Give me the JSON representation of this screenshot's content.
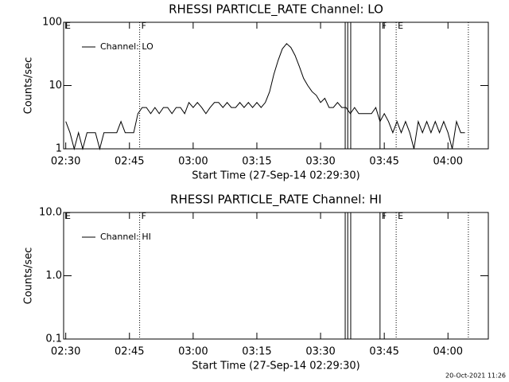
{
  "chart_data": [
    {
      "type": "line",
      "title": "RHESSI PARTICLE_RATE Channel: LO",
      "xlabel": "Start Time (27-Sep-14 02:29:30)",
      "ylabel": "Counts/sec",
      "log_y": true,
      "grid": false,
      "legend": "upper-left",
      "xlim": [
        "02:29:30",
        "04:09:30"
      ],
      "xticks": [
        {
          "value": "02:30",
          "label": "02:30"
        },
        {
          "value": "02:45",
          "label": "02:45"
        },
        {
          "value": "03:00",
          "label": "03:00"
        },
        {
          "value": "03:15",
          "label": "03:15"
        },
        {
          "value": "03:30",
          "label": "03:30"
        },
        {
          "value": "03:45",
          "label": "03:45"
        },
        {
          "value": "04:00",
          "label": "04:00"
        }
      ],
      "ylim": [
        1,
        100
      ],
      "yticks": [
        1,
        10,
        100
      ],
      "markers": [
        {
          "x": "02:29:30",
          "style": "solid",
          "label": "E"
        },
        {
          "x": "02:47:24",
          "style": "dotted",
          "label": "F"
        },
        {
          "x": "03:35:48",
          "style": "solid"
        },
        {
          "x": "03:36:24",
          "style": "solid"
        },
        {
          "x": "03:37:06",
          "style": "solid"
        },
        {
          "x": "03:44:00",
          "style": "solid",
          "label": "F"
        },
        {
          "x": "03:47:48",
          "style": "dotted",
          "label": "E"
        },
        {
          "x": "04:04:48",
          "style": "dotted"
        }
      ],
      "x": [
        "02:30",
        "02:31",
        "02:32",
        "02:33",
        "02:34",
        "02:35",
        "02:36",
        "02:37",
        "02:38",
        "02:39",
        "02:40",
        "02:41",
        "02:42",
        "02:43",
        "02:44",
        "02:45",
        "02:46",
        "02:47",
        "02:48",
        "02:49",
        "02:50",
        "02:51",
        "02:52",
        "02:53",
        "02:54",
        "02:55",
        "02:56",
        "02:57",
        "02:58",
        "02:59",
        "03:00",
        "03:01",
        "03:02",
        "03:03",
        "03:04",
        "03:05",
        "03:06",
        "03:07",
        "03:08",
        "03:09",
        "03:10",
        "03:11",
        "03:12",
        "03:13",
        "03:14",
        "03:15",
        "03:16",
        "03:17",
        "03:18",
        "03:19",
        "03:20",
        "03:21",
        "03:22",
        "03:23",
        "03:24",
        "03:25",
        "03:26",
        "03:27",
        "03:28",
        "03:29",
        "03:30",
        "03:31",
        "03:32",
        "03:33",
        "03:34",
        "03:35",
        "03:36",
        "03:37",
        "03:38",
        "03:39",
        "03:40",
        "03:41",
        "03:42",
        "03:43",
        "03:44",
        "03:45",
        "03:46",
        "03:47",
        "03:48",
        "03:49",
        "03:50",
        "03:51",
        "03:52",
        "03:53",
        "03:54",
        "03:55",
        "03:56",
        "03:57",
        "03:58",
        "03:59",
        "04:00",
        "04:01",
        "04:02",
        "04:03",
        "04:04"
      ],
      "series": [
        {
          "name": "Channel: LO",
          "color": "#000000",
          "values": [
            2.7,
            1.8,
            1.0,
            1.8,
            1.0,
            1.8,
            1.8,
            1.8,
            1.0,
            1.8,
            1.8,
            1.8,
            1.8,
            2.7,
            1.8,
            1.8,
            1.8,
            3.6,
            4.5,
            4.5,
            3.6,
            4.5,
            3.6,
            4.5,
            4.5,
            3.6,
            4.5,
            4.5,
            3.6,
            5.4,
            4.5,
            5.4,
            4.5,
            3.6,
            4.5,
            5.4,
            5.4,
            4.5,
            5.4,
            4.5,
            4.5,
            5.4,
            4.5,
            5.4,
            4.5,
            5.4,
            4.5,
            5.4,
            8,
            15,
            25,
            38,
            46,
            40,
            30,
            20,
            13,
            10,
            8,
            7,
            5.4,
            6.3,
            4.5,
            4.5,
            5.4,
            4.5,
            4.5,
            3.6,
            4.5,
            3.6,
            3.6,
            3.6,
            3.6,
            4.5,
            2.7,
            3.6,
            2.7,
            1.8,
            2.7,
            1.8,
            2.7,
            1.8,
            1.0,
            2.7,
            1.8,
            2.7,
            1.8,
            2.7,
            1.8,
            2.7,
            1.8,
            1.0,
            2.7,
            1.8,
            1.8
          ]
        }
      ]
    },
    {
      "type": "line",
      "title": "RHESSI PARTICLE_RATE Channel: HI",
      "xlabel": "Start Time (27-Sep-14 02:29:30)",
      "ylabel": "Counts/sec",
      "log_y": true,
      "grid": false,
      "legend": "upper-left",
      "xlim": [
        "02:29:30",
        "04:09:30"
      ],
      "xticks": [
        {
          "value": "02:30",
          "label": "02:30"
        },
        {
          "value": "02:45",
          "label": "02:45"
        },
        {
          "value": "03:00",
          "label": "03:00"
        },
        {
          "value": "03:15",
          "label": "03:15"
        },
        {
          "value": "03:30",
          "label": "03:30"
        },
        {
          "value": "03:45",
          "label": "03:45"
        },
        {
          "value": "04:00",
          "label": "04:00"
        }
      ],
      "ylim": [
        0.1,
        10
      ],
      "yticks": [
        {
          "value": 0.1,
          "label": "0.1"
        },
        {
          "value": 1,
          "label": "1.0"
        },
        {
          "value": 10,
          "label": "10.0"
        }
      ],
      "markers": [
        {
          "x": "02:29:30",
          "style": "solid",
          "label": "E"
        },
        {
          "x": "02:47:24",
          "style": "dotted",
          "label": "F"
        },
        {
          "x": "03:35:48",
          "style": "solid"
        },
        {
          "x": "03:36:24",
          "style": "solid"
        },
        {
          "x": "03:37:06",
          "style": "solid"
        },
        {
          "x": "03:44:00",
          "style": "solid",
          "label": "F"
        },
        {
          "x": "03:47:48",
          "style": "dotted",
          "label": "E"
        },
        {
          "x": "04:04:48",
          "style": "dotted"
        }
      ],
      "x": [],
      "series": [
        {
          "name": "Channel: HI",
          "color": "#000000",
          "values": []
        }
      ]
    }
  ],
  "footer": "20-Oct-2021 11:26"
}
